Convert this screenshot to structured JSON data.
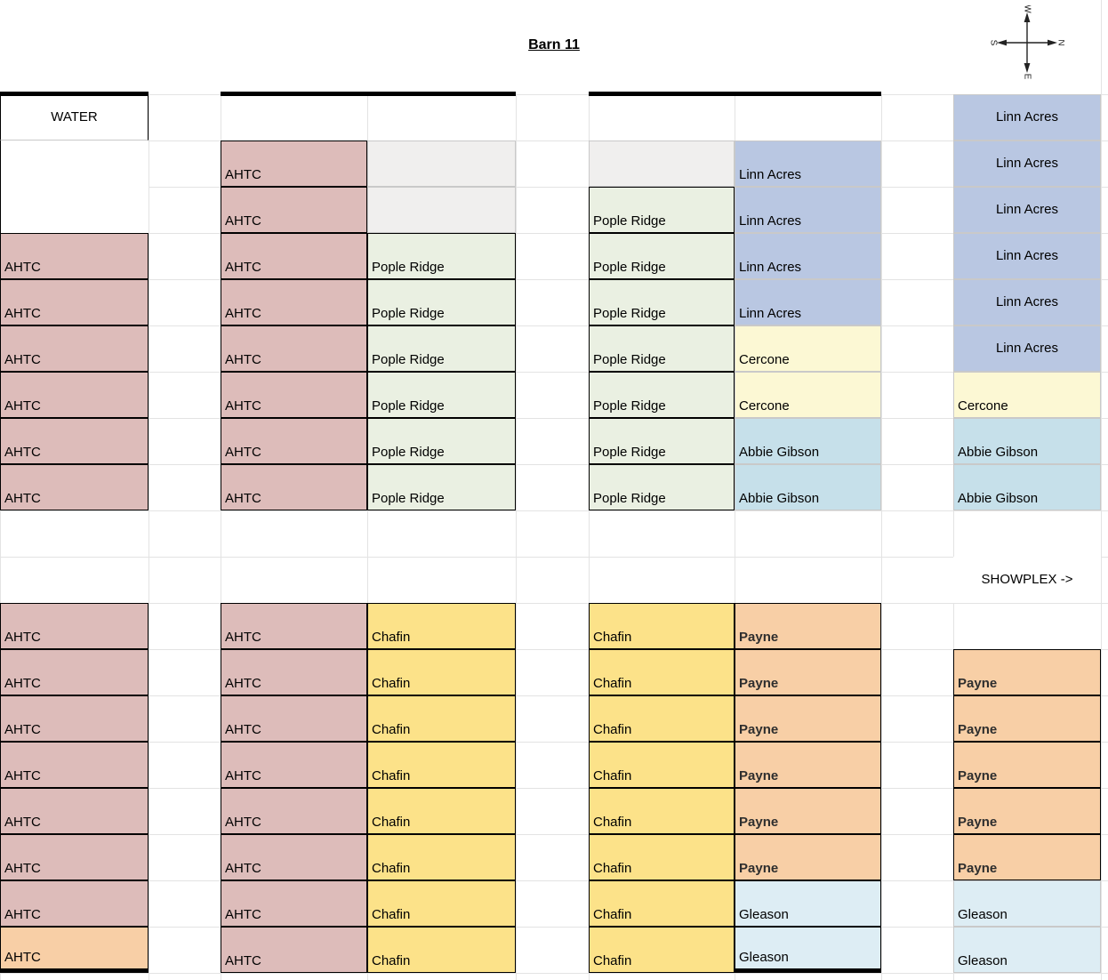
{
  "title": "Barn 11",
  "compass": {
    "top": "W",
    "right": "N",
    "bottom": "E",
    "left": "S"
  },
  "colors": {
    "white": "#ffffff",
    "pink": "#ddbcba",
    "orange": "#f8cfa6",
    "grayFill": "#f0efee",
    "green": "#eaf0e2",
    "blue": "#b9c7e2",
    "paleYellow": "#fcf8d4",
    "teal": "#c6e0ea",
    "yellow": "#fce289",
    "paleBlue": "#ddedf4"
  },
  "grid": {
    "cells": [
      {
        "col": "A",
        "row": 1,
        "text": "WATER",
        "fill": "white",
        "border": "black",
        "borderBottom": "gray",
        "align": "center"
      },
      {
        "col": "A",
        "row": 2,
        "text": "",
        "fill": "white",
        "border": "none",
        "borderLeft": true
      },
      {
        "col": "A",
        "row": 3,
        "text": "",
        "fill": "white",
        "border": "none",
        "borderLeft": true
      },
      {
        "col": "A",
        "row": 4,
        "text": "AHTC",
        "fill": "pink",
        "border": "black"
      },
      {
        "col": "A",
        "row": 5,
        "text": "AHTC",
        "fill": "pink",
        "border": "black"
      },
      {
        "col": "A",
        "row": 6,
        "text": "AHTC",
        "fill": "pink",
        "border": "black"
      },
      {
        "col": "A",
        "row": 7,
        "text": "AHTC",
        "fill": "pink",
        "border": "black"
      },
      {
        "col": "A",
        "row": 8,
        "text": "AHTC",
        "fill": "pink",
        "border": "black"
      },
      {
        "col": "A",
        "row": 9,
        "text": "AHTC",
        "fill": "pink",
        "border": "black"
      },
      {
        "col": "A",
        "row": 12,
        "text": "AHTC",
        "fill": "pink",
        "border": "black"
      },
      {
        "col": "A",
        "row": 13,
        "text": "AHTC",
        "fill": "pink",
        "border": "black"
      },
      {
        "col": "A",
        "row": 14,
        "text": "AHTC",
        "fill": "pink",
        "border": "black"
      },
      {
        "col": "A",
        "row": 15,
        "text": "AHTC",
        "fill": "pink",
        "border": "black"
      },
      {
        "col": "A",
        "row": 16,
        "text": "AHTC",
        "fill": "pink",
        "border": "black"
      },
      {
        "col": "A",
        "row": 17,
        "text": "AHTC",
        "fill": "pink",
        "border": "black"
      },
      {
        "col": "A",
        "row": 18,
        "text": "AHTC",
        "fill": "pink",
        "border": "black"
      },
      {
        "col": "A",
        "row": 19,
        "text": "AHTC",
        "fill": "orange",
        "border": "black",
        "thickBottom": true
      },
      {
        "col": "B",
        "row": 2,
        "text": "AHTC",
        "fill": "pink",
        "border": "black"
      },
      {
        "col": "B",
        "row": 3,
        "text": "AHTC",
        "fill": "pink",
        "border": "black"
      },
      {
        "col": "B",
        "row": 4,
        "text": "AHTC",
        "fill": "pink",
        "border": "black"
      },
      {
        "col": "B",
        "row": 5,
        "text": "AHTC",
        "fill": "pink",
        "border": "black"
      },
      {
        "col": "B",
        "row": 6,
        "text": "AHTC",
        "fill": "pink",
        "border": "black"
      },
      {
        "col": "B",
        "row": 7,
        "text": "AHTC",
        "fill": "pink",
        "border": "black"
      },
      {
        "col": "B",
        "row": 8,
        "text": "AHTC",
        "fill": "pink",
        "border": "black"
      },
      {
        "col": "B",
        "row": 9,
        "text": "AHTC",
        "fill": "pink",
        "border": "black"
      },
      {
        "col": "B",
        "row": 12,
        "text": "AHTC",
        "fill": "pink",
        "border": "black"
      },
      {
        "col": "B",
        "row": 13,
        "text": "AHTC",
        "fill": "pink",
        "border": "black"
      },
      {
        "col": "B",
        "row": 14,
        "text": "AHTC",
        "fill": "pink",
        "border": "black"
      },
      {
        "col": "B",
        "row": 15,
        "text": "AHTC",
        "fill": "pink",
        "border": "black"
      },
      {
        "col": "B",
        "row": 16,
        "text": "AHTC",
        "fill": "pink",
        "border": "black"
      },
      {
        "col": "B",
        "row": 17,
        "text": "AHTC",
        "fill": "pink",
        "border": "black"
      },
      {
        "col": "B",
        "row": 18,
        "text": "AHTC",
        "fill": "pink",
        "border": "black"
      },
      {
        "col": "B",
        "row": 19,
        "text": "AHTC",
        "fill": "pink",
        "border": "black"
      },
      {
        "col": "C",
        "row": 2,
        "text": "",
        "fill": "grayFill",
        "border": "gray"
      },
      {
        "col": "C",
        "row": 3,
        "text": "",
        "fill": "grayFill",
        "border": "gray"
      },
      {
        "col": "C",
        "row": 4,
        "text": "Pople Ridge",
        "fill": "green",
        "border": "black"
      },
      {
        "col": "C",
        "row": 5,
        "text": "Pople Ridge",
        "fill": "green",
        "border": "black"
      },
      {
        "col": "C",
        "row": 6,
        "text": "Pople Ridge",
        "fill": "green",
        "border": "black"
      },
      {
        "col": "C",
        "row": 7,
        "text": "Pople Ridge",
        "fill": "green",
        "border": "black"
      },
      {
        "col": "C",
        "row": 8,
        "text": "Pople Ridge",
        "fill": "green",
        "border": "black"
      },
      {
        "col": "C",
        "row": 9,
        "text": "Pople Ridge",
        "fill": "green",
        "border": "black"
      },
      {
        "col": "C",
        "row": 12,
        "text": "Chafin",
        "fill": "yellow",
        "border": "black"
      },
      {
        "col": "C",
        "row": 13,
        "text": "Chafin",
        "fill": "yellow",
        "border": "black"
      },
      {
        "col": "C",
        "row": 14,
        "text": "Chafin",
        "fill": "yellow",
        "border": "black"
      },
      {
        "col": "C",
        "row": 15,
        "text": "Chafin",
        "fill": "yellow",
        "border": "black"
      },
      {
        "col": "C",
        "row": 16,
        "text": "Chafin",
        "fill": "yellow",
        "border": "black"
      },
      {
        "col": "C",
        "row": 17,
        "text": "Chafin",
        "fill": "yellow",
        "border": "black"
      },
      {
        "col": "C",
        "row": 18,
        "text": "Chafin",
        "fill": "yellow",
        "border": "black"
      },
      {
        "col": "C",
        "row": 19,
        "text": "Chafin",
        "fill": "yellow",
        "border": "black"
      },
      {
        "col": "D",
        "row": 2,
        "text": "",
        "fill": "grayFill",
        "border": "gray"
      },
      {
        "col": "D",
        "row": 3,
        "text": "Pople Ridge",
        "fill": "green",
        "border": "black"
      },
      {
        "col": "D",
        "row": 4,
        "text": "Pople Ridge",
        "fill": "green",
        "border": "black"
      },
      {
        "col": "D",
        "row": 5,
        "text": "Pople Ridge",
        "fill": "green",
        "border": "black"
      },
      {
        "col": "D",
        "row": 6,
        "text": "Pople Ridge",
        "fill": "green",
        "border": "black"
      },
      {
        "col": "D",
        "row": 7,
        "text": "Pople Ridge",
        "fill": "green",
        "border": "black"
      },
      {
        "col": "D",
        "row": 8,
        "text": "Pople Ridge",
        "fill": "green",
        "border": "black"
      },
      {
        "col": "D",
        "row": 9,
        "text": "Pople Ridge",
        "fill": "green",
        "border": "black"
      },
      {
        "col": "D",
        "row": 12,
        "text": "Chafin",
        "fill": "yellow",
        "border": "black"
      },
      {
        "col": "D",
        "row": 13,
        "text": "Chafin",
        "fill": "yellow",
        "border": "black"
      },
      {
        "col": "D",
        "row": 14,
        "text": "Chafin",
        "fill": "yellow",
        "border": "black"
      },
      {
        "col": "D",
        "row": 15,
        "text": "Chafin",
        "fill": "yellow",
        "border": "black"
      },
      {
        "col": "D",
        "row": 16,
        "text": "Chafin",
        "fill": "yellow",
        "border": "black"
      },
      {
        "col": "D",
        "row": 17,
        "text": "Chafin",
        "fill": "yellow",
        "border": "black"
      },
      {
        "col": "D",
        "row": 18,
        "text": "Chafin",
        "fill": "yellow",
        "border": "black"
      },
      {
        "col": "D",
        "row": 19,
        "text": "Chafin",
        "fill": "yellow",
        "border": "black"
      },
      {
        "col": "E",
        "row": 2,
        "text": "Linn Acres",
        "fill": "blue",
        "border": "gray"
      },
      {
        "col": "E",
        "row": 3,
        "text": "Linn Acres",
        "fill": "blue",
        "border": "gray"
      },
      {
        "col": "E",
        "row": 4,
        "text": "Linn Acres",
        "fill": "blue",
        "border": "gray"
      },
      {
        "col": "E",
        "row": 5,
        "text": "Linn Acres",
        "fill": "blue",
        "border": "gray"
      },
      {
        "col": "E",
        "row": 6,
        "text": "Cercone",
        "fill": "paleYellow",
        "border": "gray"
      },
      {
        "col": "E",
        "row": 7,
        "text": "Cercone",
        "fill": "paleYellow",
        "border": "gray"
      },
      {
        "col": "E",
        "row": 8,
        "text": "Abbie Gibson",
        "fill": "teal",
        "border": "gray"
      },
      {
        "col": "E",
        "row": 9,
        "text": "Abbie Gibson",
        "fill": "teal",
        "border": "gray"
      },
      {
        "col": "E",
        "row": 12,
        "text": "Payne",
        "fill": "orange",
        "border": "black",
        "bold": true
      },
      {
        "col": "E",
        "row": 13,
        "text": "Payne",
        "fill": "orange",
        "border": "black",
        "bold": true
      },
      {
        "col": "E",
        "row": 14,
        "text": "Payne",
        "fill": "orange",
        "border": "black",
        "bold": true
      },
      {
        "col": "E",
        "row": 15,
        "text": "Payne",
        "fill": "orange",
        "border": "black",
        "bold": true
      },
      {
        "col": "E",
        "row": 16,
        "text": "Payne",
        "fill": "orange",
        "border": "black",
        "bold": true
      },
      {
        "col": "E",
        "row": 17,
        "text": "Payne",
        "fill": "orange",
        "border": "black",
        "bold": true
      },
      {
        "col": "E",
        "row": 18,
        "text": "Gleason",
        "fill": "paleBlue",
        "border": "black"
      },
      {
        "col": "E",
        "row": 19,
        "text": "Gleason",
        "fill": "paleBlue",
        "border": "black",
        "thickBottom": true
      },
      {
        "col": "F",
        "row": 1,
        "text": "Linn Acres",
        "fill": "blue",
        "border": "gray",
        "align": "center"
      },
      {
        "col": "F",
        "row": 2,
        "text": "Linn Acres",
        "fill": "blue",
        "border": "gray",
        "align": "center"
      },
      {
        "col": "F",
        "row": 3,
        "text": "Linn Acres",
        "fill": "blue",
        "border": "gray",
        "align": "center"
      },
      {
        "col": "F",
        "row": 4,
        "text": "Linn Acres",
        "fill": "blue",
        "border": "gray",
        "align": "center"
      },
      {
        "col": "F",
        "row": 5,
        "text": "Linn Acres",
        "fill": "blue",
        "border": "gray",
        "align": "center"
      },
      {
        "col": "F",
        "row": 6,
        "text": "Linn Acres",
        "fill": "blue",
        "border": "gray",
        "align": "center"
      },
      {
        "col": "F",
        "row": 7,
        "text": "Cercone",
        "fill": "paleYellow",
        "border": "gray"
      },
      {
        "col": "F",
        "row": 8,
        "text": "Abbie Gibson",
        "fill": "teal",
        "border": "gray"
      },
      {
        "col": "F",
        "row": 9,
        "text": "Abbie Gibson",
        "fill": "teal",
        "border": "gray"
      },
      {
        "col": "F",
        "row": 11,
        "text": "SHOWPLEX ->",
        "fill": "white",
        "border": "none",
        "align": "center"
      },
      {
        "col": "F",
        "row": 13,
        "text": "Payne",
        "fill": "orange",
        "border": "black",
        "bold": true
      },
      {
        "col": "F",
        "row": 14,
        "text": "Payne",
        "fill": "orange",
        "border": "black",
        "bold": true
      },
      {
        "col": "F",
        "row": 15,
        "text": "Payne",
        "fill": "orange",
        "border": "black",
        "bold": true
      },
      {
        "col": "F",
        "row": 16,
        "text": "Payne",
        "fill": "orange",
        "border": "black",
        "bold": true
      },
      {
        "col": "F",
        "row": 17,
        "text": "Payne",
        "fill": "orange",
        "border": "black",
        "bold": true
      },
      {
        "col": "F",
        "row": 18,
        "text": "Gleason",
        "fill": "paleBlue",
        "border": "gray"
      },
      {
        "col": "F",
        "row": 19,
        "text": "Gleason",
        "fill": "paleBlue",
        "border": "gray"
      }
    ]
  }
}
